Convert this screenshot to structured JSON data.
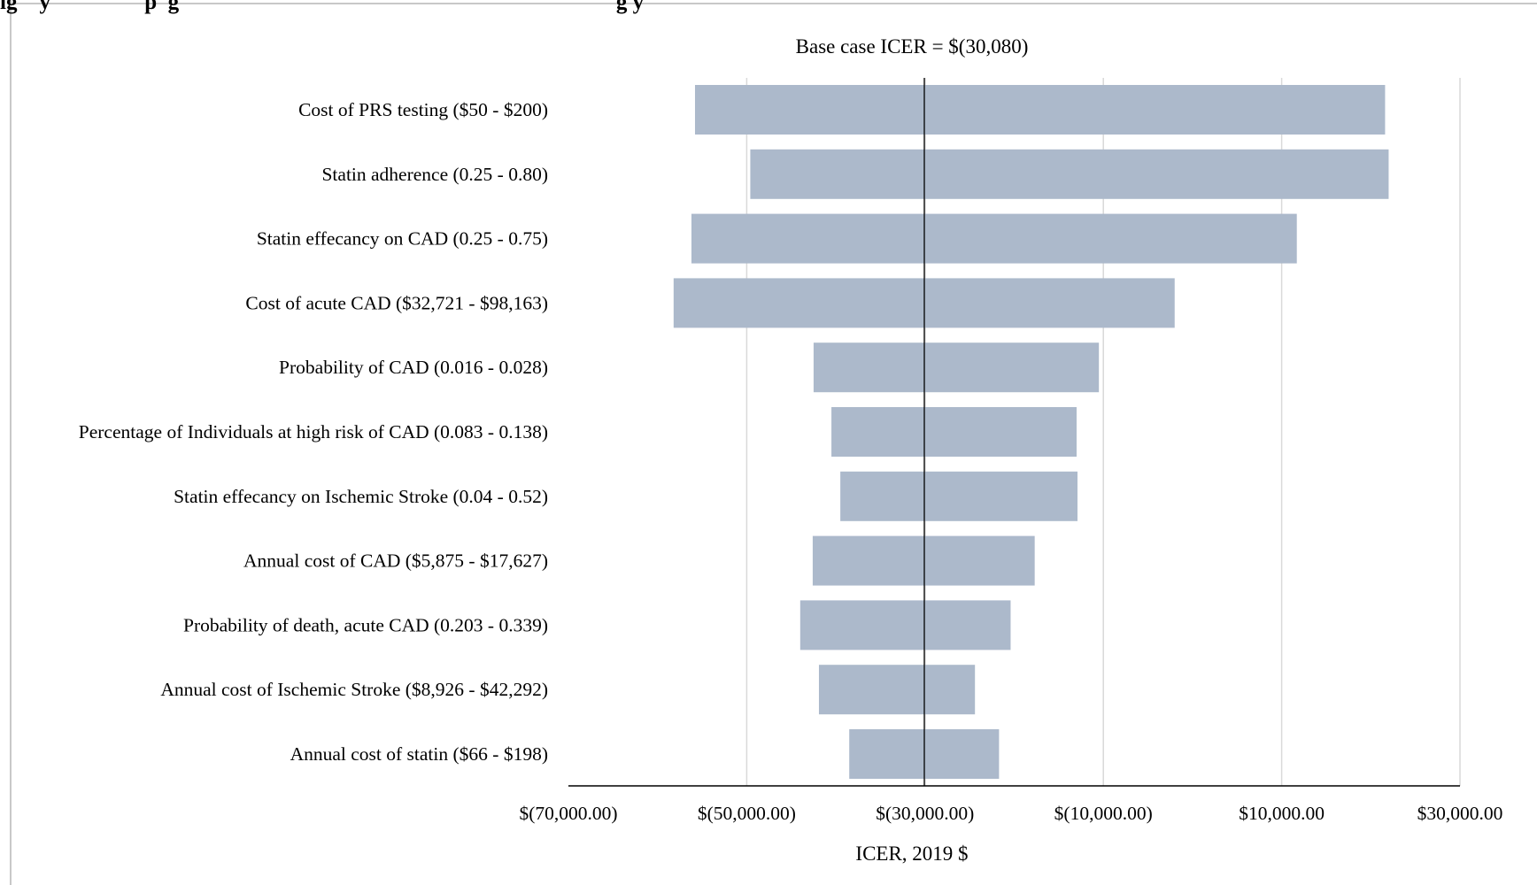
{
  "page_heading": "ig    y                 p  g                                                                               g y",
  "colors": {
    "bar_fill": "#acb9cb",
    "gridline": "#d9d9d9",
    "axis": "#000000",
    "frame": "#c8c8c8",
    "text": "#000000"
  },
  "chart_data": {
    "type": "bar",
    "orientation": "horizontal",
    "variant": "tornado",
    "title": "Base case ICER = $(30,080)",
    "xlabel": "ICER, 2019 $",
    "ylabel": "",
    "base_value": -30080,
    "xlim": [
      -70000,
      30000
    ],
    "xticks": [
      -70000,
      -50000,
      -30000,
      -10000,
      10000,
      30000
    ],
    "xtick_labels": [
      "$(70,000.00)",
      "$(50,000.00)",
      "$(30,000.00)",
      "$(10,000.00)",
      "$10,000.00",
      "$30,000.00"
    ],
    "grid": true,
    "legend": "none",
    "categories": [
      "Cost of PRS testing ($50 - $200)",
      "Statin adherence (0.25 - 0.80)",
      "Statin effecancy on CAD (0.25 - 0.75)",
      "Cost of acute CAD ($32,721 - $98,163)",
      "Probability of CAD (0.016 - 0.028)",
      "Percentage of Individuals at high risk of CAD (0.083 - 0.138)",
      "Statin effecancy on Ischemic Stroke (0.04 - 0.52)",
      "Annual cost of CAD ($5,875 - $17,627)",
      "Probability of death, acute CAD (0.203 - 0.339)",
      "Annual cost of Ischemic Stroke ($8,926 - $42,292)",
      "Annual cost of statin ($66 - $198)"
    ],
    "ranges": [
      [
        -55800,
        21600
      ],
      [
        -49600,
        22000
      ],
      [
        -56200,
        11700
      ],
      [
        -58200,
        -2000
      ],
      [
        -42500,
        -10500
      ],
      [
        -40500,
        -13000
      ],
      [
        -39500,
        -12900
      ],
      [
        -42600,
        -17700
      ],
      [
        -44000,
        -20400
      ],
      [
        -41900,
        -24400
      ],
      [
        -38500,
        -21700
      ]
    ]
  }
}
